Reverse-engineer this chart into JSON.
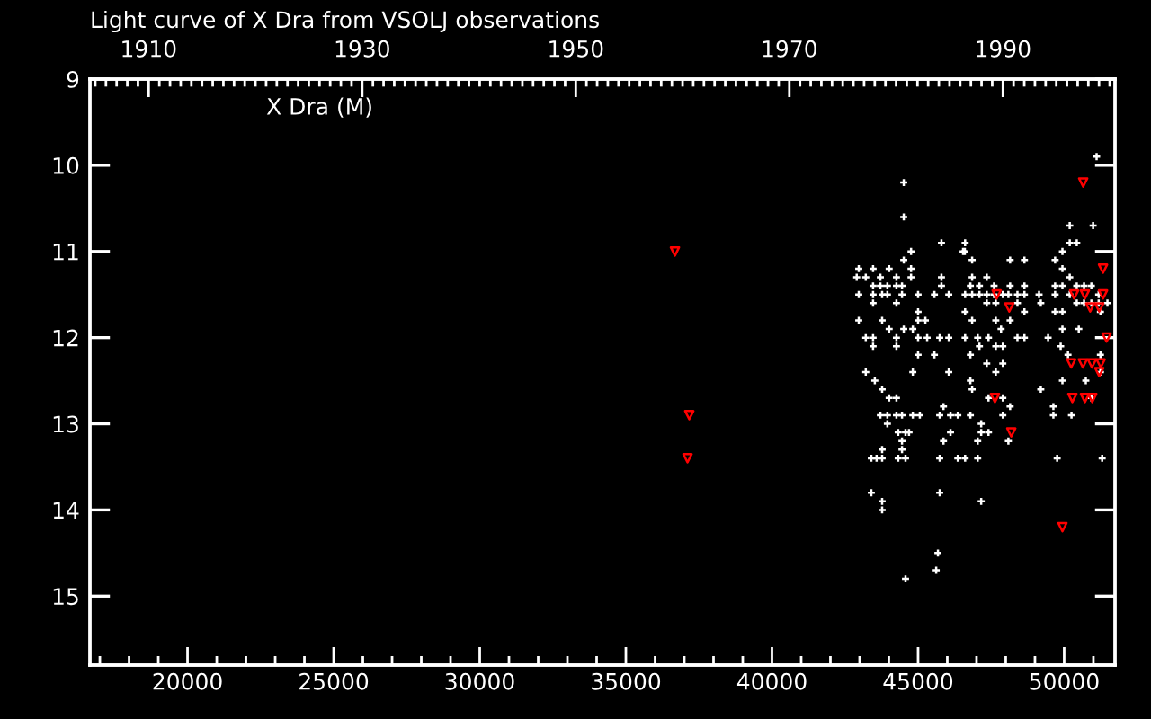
{
  "chart_data": {
    "type": "scatter",
    "title": "Light curve of X Dra from VSOLJ observations",
    "annotations": [
      "X Dra (M)"
    ],
    "xlim": [
      16660,
      51740
    ],
    "xticks": [
      {
        "value": 17000,
        "label": null
      },
      {
        "value": 18000,
        "label": null
      },
      {
        "value": 19000,
        "label": null
      },
      20000,
      {
        "value": 21000,
        "label": null
      },
      {
        "value": 22000,
        "label": null
      },
      {
        "value": 23000,
        "label": null
      },
      {
        "value": 24000,
        "label": null
      },
      25000,
      {
        "value": 26000,
        "label": null
      },
      {
        "value": 27000,
        "label": null
      },
      {
        "value": 28000,
        "label": null
      },
      {
        "value": 29000,
        "label": null
      },
      30000,
      {
        "value": 31000,
        "label": null
      },
      {
        "value": 32000,
        "label": null
      },
      {
        "value": 33000,
        "label": null
      },
      {
        "value": 34000,
        "label": null
      },
      35000,
      {
        "value": 36000,
        "label": null
      },
      {
        "value": 37000,
        "label": null
      },
      {
        "value": 38000,
        "label": null
      },
      {
        "value": 39000,
        "label": null
      },
      40000,
      {
        "value": 41000,
        "label": null
      },
      {
        "value": 42000,
        "label": null
      },
      {
        "value": 43000,
        "label": null
      },
      {
        "value": 44000,
        "label": null
      },
      45000,
      {
        "value": 46000,
        "label": null
      },
      {
        "value": 47000,
        "label": null
      },
      {
        "value": 48000,
        "label": null
      },
      {
        "value": 49000,
        "label": null
      },
      50000,
      {
        "value": 51000,
        "label": null
      }
    ],
    "x2lim": [
      1904.5,
      2000.5
    ],
    "x2ticks": [
      {
        "value": 1905,
        "label": null
      },
      {
        "value": 1906,
        "label": null
      },
      {
        "value": 1907,
        "label": null
      },
      {
        "value": 1908,
        "label": null
      },
      {
        "value": 1909,
        "label": null
      },
      1910,
      {
        "value": 1911,
        "label": null
      },
      {
        "value": 1912,
        "label": null
      },
      {
        "value": 1913,
        "label": null
      },
      {
        "value": 1914,
        "label": null
      },
      {
        "value": 1915,
        "label": null
      },
      {
        "value": 1916,
        "label": null
      },
      {
        "value": 1917,
        "label": null
      },
      {
        "value": 1918,
        "label": null
      },
      {
        "value": 1919,
        "label": null
      },
      {
        "value": 1920,
        "label": null
      },
      {
        "value": 1921,
        "label": null
      },
      {
        "value": 1922,
        "label": null
      },
      {
        "value": 1923,
        "label": null
      },
      {
        "value": 1924,
        "label": null
      },
      {
        "value": 1925,
        "label": null
      },
      {
        "value": 1926,
        "label": null
      },
      {
        "value": 1927,
        "label": null
      },
      {
        "value": 1928,
        "label": null
      },
      {
        "value": 1929,
        "label": null
      },
      1930,
      {
        "value": 1931,
        "label": null
      },
      {
        "value": 1932,
        "label": null
      },
      {
        "value": 1933,
        "label": null
      },
      {
        "value": 1934,
        "label": null
      },
      {
        "value": 1935,
        "label": null
      },
      {
        "value": 1936,
        "label": null
      },
      {
        "value": 1937,
        "label": null
      },
      {
        "value": 1938,
        "label": null
      },
      {
        "value": 1939,
        "label": null
      },
      {
        "value": 1940,
        "label": null
      },
      {
        "value": 1941,
        "label": null
      },
      {
        "value": 1942,
        "label": null
      },
      {
        "value": 1943,
        "label": null
      },
      {
        "value": 1944,
        "label": null
      },
      {
        "value": 1945,
        "label": null
      },
      {
        "value": 1946,
        "label": null
      },
      {
        "value": 1947,
        "label": null
      },
      {
        "value": 1948,
        "label": null
      },
      {
        "value": 1949,
        "label": null
      },
      1950,
      {
        "value": 1951,
        "label": null
      },
      {
        "value": 1952,
        "label": null
      },
      {
        "value": 1953,
        "label": null
      },
      {
        "value": 1954,
        "label": null
      },
      {
        "value": 1955,
        "label": null
      },
      {
        "value": 1956,
        "label": null
      },
      {
        "value": 1957,
        "label": null
      },
      {
        "value": 1958,
        "label": null
      },
      {
        "value": 1959,
        "label": null
      },
      {
        "value": 1960,
        "label": null
      },
      {
        "value": 1961,
        "label": null
      },
      {
        "value": 1962,
        "label": null
      },
      {
        "value": 1963,
        "label": null
      },
      {
        "value": 1964,
        "label": null
      },
      {
        "value": 1965,
        "label": null
      },
      {
        "value": 1966,
        "label": null
      },
      {
        "value": 1967,
        "label": null
      },
      {
        "value": 1968,
        "label": null
      },
      {
        "value": 1969,
        "label": null
      },
      1970,
      {
        "value": 1971,
        "label": null
      },
      {
        "value": 1972,
        "label": null
      },
      {
        "value": 1973,
        "label": null
      },
      {
        "value": 1974,
        "label": null
      },
      {
        "value": 1975,
        "label": null
      },
      {
        "value": 1976,
        "label": null
      },
      {
        "value": 1977,
        "label": null
      },
      {
        "value": 1978,
        "label": null
      },
      {
        "value": 1979,
        "label": null
      },
      {
        "value": 1980,
        "label": null
      },
      {
        "value": 1981,
        "label": null
      },
      {
        "value": 1982,
        "label": null
      },
      {
        "value": 1983,
        "label": null
      },
      {
        "value": 1984,
        "label": null
      },
      {
        "value": 1985,
        "label": null
      },
      {
        "value": 1986,
        "label": null
      },
      {
        "value": 1987,
        "label": null
      },
      {
        "value": 1988,
        "label": null
      },
      {
        "value": 1989,
        "label": null
      },
      1990,
      {
        "value": 1991,
        "label": null
      },
      {
        "value": 1992,
        "label": null
      },
      {
        "value": 1993,
        "label": null
      },
      {
        "value": 1994,
        "label": null
      },
      {
        "value": 1995,
        "label": null
      },
      {
        "value": 1996,
        "label": null
      },
      {
        "value": 1997,
        "label": null
      },
      {
        "value": 1998,
        "label": null
      },
      {
        "value": 1999,
        "label": null
      },
      {
        "value": 2000,
        "label": null
      }
    ],
    "ylim": [
      15.8,
      9
    ],
    "yticks": [
      9,
      10,
      11,
      12,
      13,
      14,
      15
    ],
    "series": [
      {
        "color": "#ffffff",
        "marker": "cross",
        "x": [
          51110,
          44510,
          44510,
          50190,
          50990,
          45800,
          46610,
          50190,
          50430,
          44760,
          46540,
          46600,
          49940,
          44510,
          46850,
          48150,
          48640,
          49690,
          42970,
          43460,
          44010,
          44760,
          49940,
          42900,
          43210,
          43710,
          44260,
          44760,
          45800,
          46850,
          47350,
          50190,
          43460,
          43710,
          43950,
          44260,
          44450,
          45800,
          46790,
          47100,
          47600,
          48150,
          48640,
          49690,
          49940,
          50430,
          50680,
          50930,
          42970,
          43460,
          43770,
          43950,
          44450,
          45000,
          45560,
          46050,
          46610,
          46850,
          47100,
          47350,
          47600,
          47900,
          48090,
          48400,
          48640,
          49140,
          49690,
          50190,
          51180,
          43460,
          44260,
          47350,
          47660,
          48400,
          49200,
          50430,
          50680,
          50930,
          51180,
          51480,
          45000,
          46610,
          48640,
          49690,
          49940,
          51240,
          42970,
          43770,
          45000,
          45250,
          46850,
          47660,
          48150,
          44010,
          44510,
          44820,
          47840,
          49940,
          50500,
          43210,
          43460,
          44260,
          45000,
          45310,
          45740,
          46050,
          46610,
          47040,
          47410,
          48400,
          48640,
          49450,
          43460,
          44260,
          47100,
          47660,
          47900,
          49880,
          45000,
          45560,
          46790,
          50130,
          51240,
          47350,
          47900,
          43210,
          44820,
          46050,
          47660,
          51240,
          43520,
          46790,
          49940,
          50740,
          43770,
          46850,
          49200,
          44010,
          44260,
          47410,
          47900,
          50930,
          45870,
          48150,
          49630,
          43710,
          43950,
          44260,
          44450,
          44820,
          45060,
          45740,
          46110,
          46360,
          46790,
          47900,
          49630,
          50250,
          43950,
          47160,
          44320,
          44570,
          44690,
          46110,
          47160,
          47410,
          44450,
          45870,
          47040,
          48090,
          43770,
          44450,
          43400,
          43580,
          43770,
          44320,
          44570,
          45740,
          46360,
          46610,
          47040,
          49760,
          51300,
          43400,
          45740,
          43770,
          47160,
          43770,
          45680,
          45620,
          44570
        ],
        "values": [
          9.9,
          10.2,
          10.6,
          10.7,
          10.7,
          10.9,
          10.9,
          10.9,
          10.9,
          11.0,
          11.0,
          11.0,
          11.0,
          11.1,
          11.1,
          11.1,
          11.1,
          11.1,
          11.2,
          11.2,
          11.2,
          11.2,
          11.2,
          11.3,
          11.3,
          11.3,
          11.3,
          11.3,
          11.3,
          11.3,
          11.3,
          11.3,
          11.4,
          11.4,
          11.4,
          11.4,
          11.4,
          11.4,
          11.4,
          11.4,
          11.4,
          11.4,
          11.4,
          11.4,
          11.4,
          11.4,
          11.4,
          11.4,
          11.5,
          11.5,
          11.5,
          11.5,
          11.5,
          11.5,
          11.5,
          11.5,
          11.5,
          11.5,
          11.5,
          11.5,
          11.5,
          11.5,
          11.5,
          11.5,
          11.5,
          11.5,
          11.5,
          11.5,
          11.5,
          11.6,
          11.6,
          11.6,
          11.6,
          11.6,
          11.6,
          11.6,
          11.6,
          11.6,
          11.6,
          11.6,
          11.7,
          11.7,
          11.7,
          11.7,
          11.7,
          11.7,
          11.8,
          11.8,
          11.8,
          11.8,
          11.8,
          11.8,
          11.8,
          11.9,
          11.9,
          11.9,
          11.9,
          11.9,
          11.9,
          12.0,
          12.0,
          12.0,
          12.0,
          12.0,
          12.0,
          12.0,
          12.0,
          12.0,
          12.0,
          12.0,
          12.0,
          12.0,
          12.1,
          12.1,
          12.1,
          12.1,
          12.1,
          12.1,
          12.2,
          12.2,
          12.2,
          12.2,
          12.2,
          12.3,
          12.3,
          12.4,
          12.4,
          12.4,
          12.4,
          12.4,
          12.5,
          12.5,
          12.5,
          12.5,
          12.6,
          12.6,
          12.6,
          12.7,
          12.7,
          12.7,
          12.7,
          12.7,
          12.8,
          12.8,
          12.8,
          12.9,
          12.9,
          12.9,
          12.9,
          12.9,
          12.9,
          12.9,
          12.9,
          12.9,
          12.9,
          12.9,
          12.9,
          12.9,
          13.0,
          13.0,
          13.1,
          13.1,
          13.1,
          13.1,
          13.1,
          13.1,
          13.2,
          13.2,
          13.2,
          13.2,
          13.3,
          13.3,
          13.4,
          13.4,
          13.4,
          13.4,
          13.4,
          13.4,
          13.4,
          13.4,
          13.4,
          13.4,
          13.4,
          13.8,
          13.8,
          13.9,
          13.9,
          14.0,
          14.5,
          14.7,
          14.8
        ]
      },
      {
        "color": "#ff0000",
        "marker": "triangle",
        "x": [
          36680,
          37170,
          37110,
          47690,
          48120,
          48190,
          47630,
          50650,
          51330,
          50340,
          50710,
          51330,
          50890,
          51200,
          51450,
          50240,
          50640,
          50950,
          51250,
          51200,
          50280,
          50710,
          50960,
          49940
        ],
        "values": [
          11.0,
          12.9,
          13.4,
          11.5,
          11.65,
          13.1,
          12.7,
          10.2,
          11.2,
          11.5,
          11.5,
          11.5,
          11.65,
          11.65,
          12.0,
          12.3,
          12.3,
          12.3,
          12.3,
          12.4,
          12.7,
          12.7,
          12.7,
          14.2
        ]
      }
    ]
  }
}
